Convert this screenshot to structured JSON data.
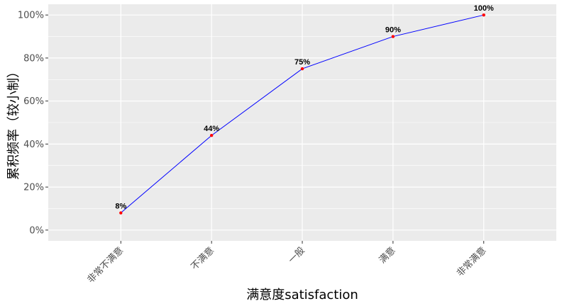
{
  "chart_data": {
    "type": "line",
    "title": "",
    "xlabel": "满意度satisfaction",
    "ylabel": "累积频率（较小制）",
    "categories": [
      "非常不满意",
      "不满意",
      "一般",
      "满意",
      "非常满意"
    ],
    "values": [
      8,
      44,
      75,
      90,
      100
    ],
    "data_labels": [
      "8%",
      "44%",
      "75%",
      "90%",
      "100%"
    ],
    "yticks": [
      0,
      20,
      40,
      60,
      80,
      100
    ],
    "ytick_labels": [
      "0%",
      "20%",
      "40%",
      "60%",
      "80%",
      "100%"
    ],
    "ylim": [
      -5,
      105
    ],
    "grid": true,
    "legend": "none",
    "colors": {
      "panel": "#ebebeb",
      "grid": "#ffffff",
      "line": "#0000ff",
      "point": "#ff0000"
    }
  }
}
